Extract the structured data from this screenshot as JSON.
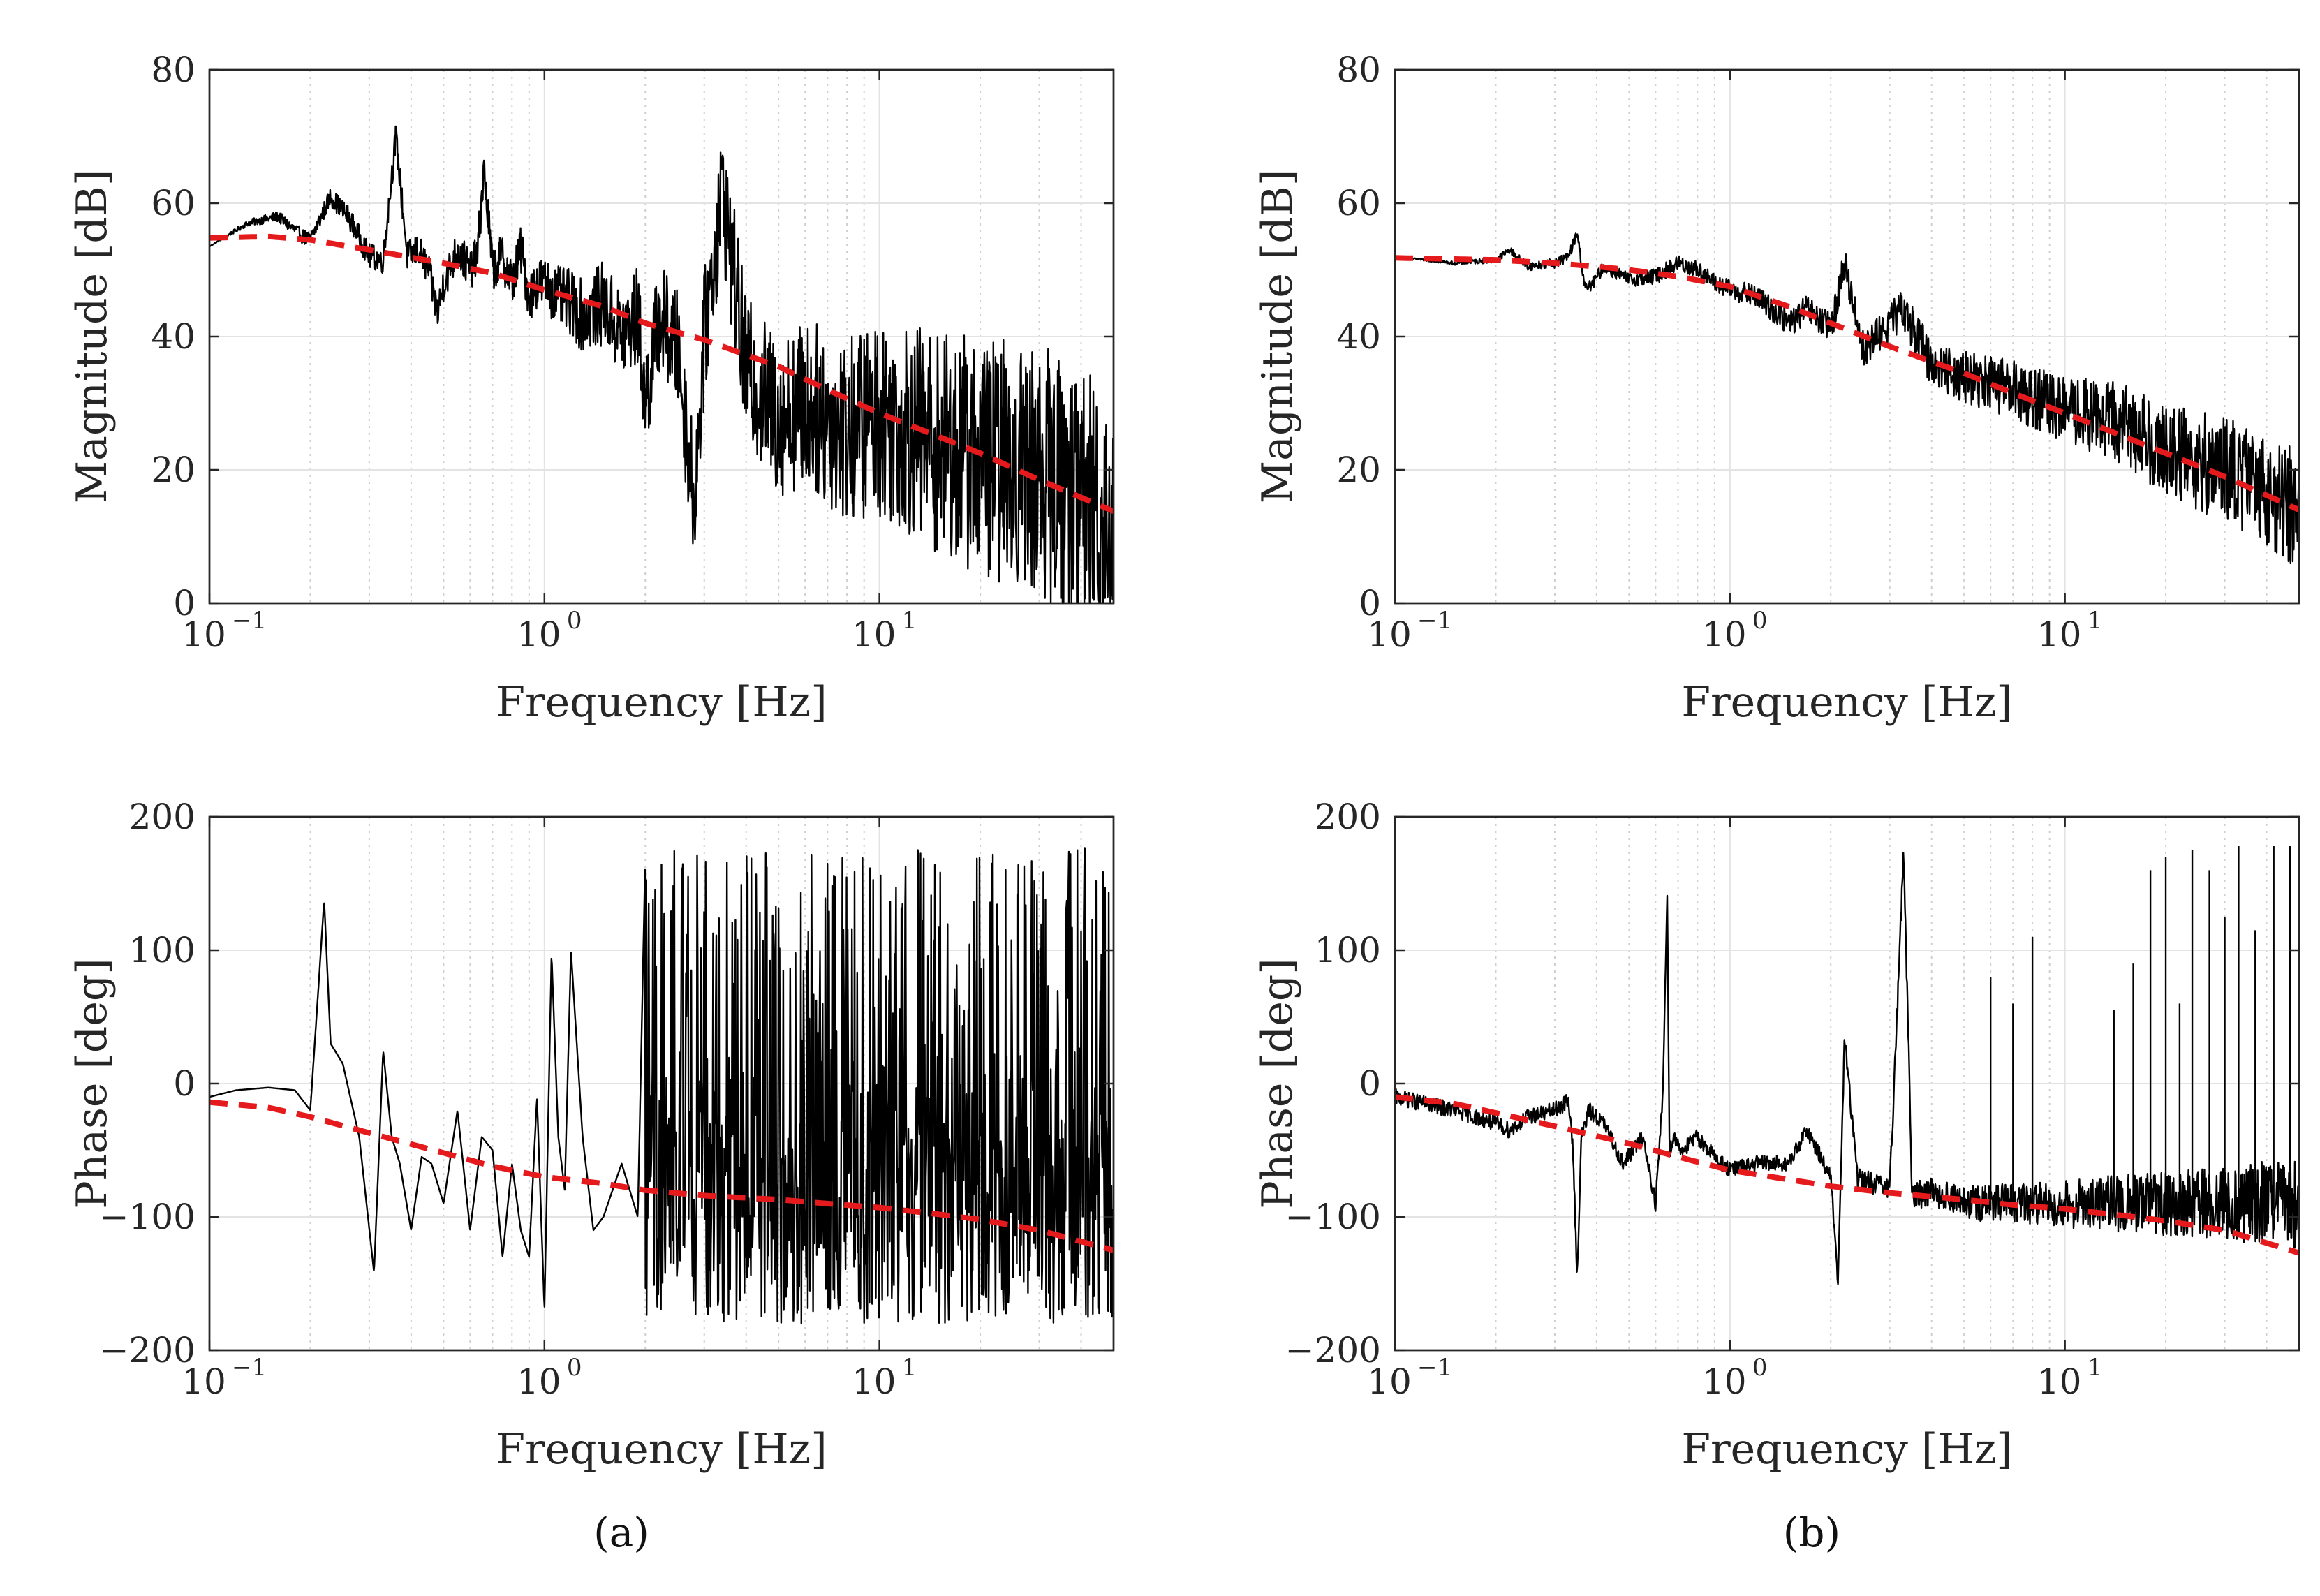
{
  "chart_data": [
    {
      "id": "a-magnitude",
      "type": "line",
      "xscale": "log",
      "xlim": [
        0.1,
        50
      ],
      "ylim": [
        0,
        80
      ],
      "xlabel": "Frequency [Hz]",
      "ylabel": "Magnitude [dB]",
      "xticks": [
        0.1,
        1,
        10
      ],
      "yticks": [
        0,
        20,
        40,
        60,
        80
      ],
      "grid": true,
      "series": [
        {
          "style": "solid",
          "color": "#000000",
          "x": [
            0.1,
            0.13,
            0.16,
            0.19,
            0.2,
            0.23,
            0.26,
            0.3,
            0.33,
            0.36,
            0.39,
            0.42,
            0.45,
            0.48,
            0.5,
            0.55,
            0.6,
            0.63,
            0.66,
            0.7,
            0.75,
            0.8,
            0.85,
            0.9,
            0.95,
            1.0,
            1.1,
            1.2,
            1.3,
            1.5,
            1.7,
            1.9,
            2.0,
            2.2,
            2.5,
            2.8,
            3.0,
            3.4,
            4,
            5,
            6,
            8,
            10,
            15,
            20,
            30,
            40,
            50
          ],
          "y": [
            53.5,
            57,
            58,
            55,
            54.5,
            61,
            58,
            52,
            51.5,
            70,
            52,
            53,
            50,
            43.5,
            48,
            53,
            50,
            52,
            65,
            50,
            52,
            48,
            53,
            46,
            48,
            48,
            46,
            45,
            43,
            45,
            40,
            43,
            30,
            43,
            38,
            15,
            40,
            62,
            35,
            28,
            30,
            26,
            28,
            24,
            22,
            20,
            16,
            12
          ],
          "noise_band": [
            [
              0.1,
              0
            ],
            [
              1,
              4
            ],
            [
              2,
              8
            ],
            [
              5,
              12
            ],
            [
              10,
              15
            ],
            [
              20,
              18
            ],
            [
              50,
              20
            ]
          ]
        },
        {
          "style": "dashed",
          "color": "#e41a1c",
          "x": [
            0.1,
            0.15,
            0.2,
            0.3,
            0.5,
            0.7,
            1,
            1.5,
            2,
            3,
            5,
            7,
            10,
            15,
            20,
            30,
            50
          ],
          "y": [
            54.8,
            55,
            54.5,
            53,
            51,
            49.5,
            47,
            44.5,
            42,
            39.5,
            35.5,
            32,
            28.5,
            25,
            22.5,
            18.5,
            13.8
          ]
        }
      ]
    },
    {
      "id": "a-phase",
      "type": "line",
      "xscale": "log",
      "xlim": [
        0.1,
        50
      ],
      "ylim": [
        -200,
        200
      ],
      "xlabel": "Frequency [Hz]",
      "ylabel": "Phase [deg]",
      "xticks": [
        0.1,
        1,
        10
      ],
      "yticks": [
        -200,
        -100,
        0,
        100,
        200
      ],
      "grid": true,
      "series": [
        {
          "style": "solid",
          "color": "#000000",
          "x": [
            0.1,
            0.12,
            0.15,
            0.18,
            0.2,
            0.21,
            0.22,
            0.23,
            0.25,
            0.28,
            0.31,
            0.33,
            0.35,
            0.37,
            0.4,
            0.43,
            0.46,
            0.5,
            0.55,
            0.6,
            0.65,
            0.7,
            0.75,
            0.8,
            0.85,
            0.9,
            0.95,
            1.0,
            1.05,
            1.1,
            1.15,
            1.2,
            1.3,
            1.4,
            1.5,
            1.7,
            1.9,
            2.0
          ],
          "y": [
            -10,
            -5,
            -3,
            -5,
            -20,
            60,
            138,
            30,
            15,
            -40,
            -142,
            25,
            -40,
            -60,
            -110,
            -55,
            -60,
            -90,
            -20,
            -110,
            -40,
            -50,
            -130,
            -60,
            -110,
            -130,
            -10,
            -170,
            98,
            -40,
            -80,
            100,
            -40,
            -110,
            -100,
            -60,
            -100,
            170
          ],
          "spike_band": [
            [
              2,
              -180,
              175
            ],
            [
              50,
              -180,
              178
            ]
          ]
        },
        {
          "style": "dashed",
          "color": "#e41a1c",
          "x": [
            0.1,
            0.15,
            0.2,
            0.3,
            0.5,
            0.7,
            1,
            1.5,
            2,
            3,
            5,
            7,
            10,
            15,
            20,
            30,
            50
          ],
          "y": [
            -14,
            -18,
            -25,
            -37,
            -52,
            -62,
            -70,
            -75,
            -80,
            -84,
            -87,
            -90,
            -93,
            -98,
            -102,
            -110,
            -125
          ]
        }
      ]
    },
    {
      "id": "b-magnitude",
      "type": "line",
      "xscale": "log",
      "xlim": [
        0.1,
        50
      ],
      "ylim": [
        0,
        80
      ],
      "xlabel": "Frequency [Hz]",
      "ylabel": "Magnitude [dB]",
      "xticks": [
        0.1,
        1,
        10
      ],
      "yticks": [
        0,
        20,
        40,
        60,
        80
      ],
      "grid": true,
      "series": [
        {
          "style": "solid",
          "color": "#000000",
          "x": [
            0.1,
            0.15,
            0.2,
            0.22,
            0.25,
            0.3,
            0.33,
            0.35,
            0.37,
            0.39,
            0.42,
            0.5,
            0.6,
            0.7,
            0.8,
            0.9,
            1.0,
            1.2,
            1.5,
            1.7,
            2.0,
            2.2,
            2.5,
            3.0,
            3.3,
            4,
            5,
            7,
            10,
            15,
            20,
            30,
            40,
            50
          ],
          "y": [
            52,
            51,
            51.5,
            53,
            50.5,
            51,
            52,
            55.5,
            47,
            48,
            50.5,
            48.5,
            49,
            51,
            50,
            48,
            47,
            46,
            42,
            44,
            41,
            51,
            38,
            42,
            44,
            36,
            34,
            32,
            29,
            27,
            23,
            20,
            17,
            14
          ],
          "noise_band": [
            [
              0.1,
              0
            ],
            [
              1,
              1.5
            ],
            [
              3,
              3
            ],
            [
              10,
              5
            ],
            [
              20,
              7
            ],
            [
              50,
              9
            ]
          ]
        },
        {
          "style": "dashed",
          "color": "#e41a1c",
          "x": [
            0.1,
            0.2,
            0.3,
            0.4,
            0.5,
            0.7,
            1,
            1.5,
            2,
            3,
            5,
            7,
            10,
            15,
            20,
            30,
            50
          ],
          "y": [
            51.8,
            51.5,
            51,
            50.5,
            50,
            49,
            47.5,
            44.5,
            42,
            38.5,
            34.5,
            31.5,
            28.5,
            25,
            22.5,
            19,
            14
          ]
        }
      ]
    },
    {
      "id": "b-phase",
      "type": "line",
      "xscale": "log",
      "xlim": [
        0.1,
        50
      ],
      "ylim": [
        -200,
        200
      ],
      "xlabel": "Frequency [Hz]",
      "ylabel": "Phase [deg]",
      "xticks": [
        0.1,
        1,
        10
      ],
      "yticks": [
        -200,
        -100,
        0,
        100,
        200
      ],
      "grid": true,
      "series": [
        {
          "style": "solid",
          "color": "#000000",
          "x": [
            0.1,
            0.15,
            0.2,
            0.22,
            0.25,
            0.3,
            0.33,
            0.34,
            0.35,
            0.36,
            0.38,
            0.42,
            0.48,
            0.55,
            0.6,
            0.63,
            0.65,
            0.66,
            0.68,
            0.72,
            0.8,
            0.9,
            1.0,
            1.2,
            1.5,
            1.7,
            2.0,
            2.1,
            2.2,
            2.4,
            3.0,
            3.3,
            3.5,
            4,
            5
          ],
          "y": [
            -10,
            -20,
            -30,
            -35,
            -25,
            -20,
            -13,
            -50,
            -145,
            -40,
            -20,
            -30,
            -60,
            -40,
            -90,
            -10,
            143,
            -50,
            -40,
            -50,
            -40,
            -55,
            -65,
            -60,
            -60,
            -35,
            -70,
            -150,
            35,
            -70,
            -80,
            175,
            -85,
            -80,
            -90
          ],
          "noise_band": [
            [
              2,
              6
            ],
            [
              10,
              18
            ],
            [
              30,
              28
            ],
            [
              50,
              35
            ]
          ],
          "spikes": [
            [
              6,
              80
            ],
            [
              7,
              60
            ],
            [
              8,
              110
            ],
            [
              14,
              55
            ],
            [
              16,
              90
            ],
            [
              18,
              160
            ],
            [
              20,
              170
            ],
            [
              22,
              60
            ],
            [
              24,
              175
            ],
            [
              27,
              160
            ],
            [
              30,
              125
            ],
            [
              33,
              178
            ],
            [
              37,
              115
            ],
            [
              42,
              178
            ],
            [
              47,
              178
            ]
          ]
        },
        {
          "style": "dashed",
          "color": "#e41a1c",
          "x": [
            0.1,
            0.15,
            0.2,
            0.3,
            0.5,
            0.7,
            1,
            1.5,
            2,
            3,
            5,
            7,
            10,
            15,
            20,
            30,
            50
          ],
          "y": [
            -10,
            -15,
            -22,
            -32,
            -45,
            -55,
            -65,
            -72,
            -77,
            -82,
            -87,
            -91,
            -94,
            -99,
            -103,
            -110,
            -127
          ]
        }
      ]
    }
  ],
  "captions": [
    "(a)",
    "(b)"
  ]
}
